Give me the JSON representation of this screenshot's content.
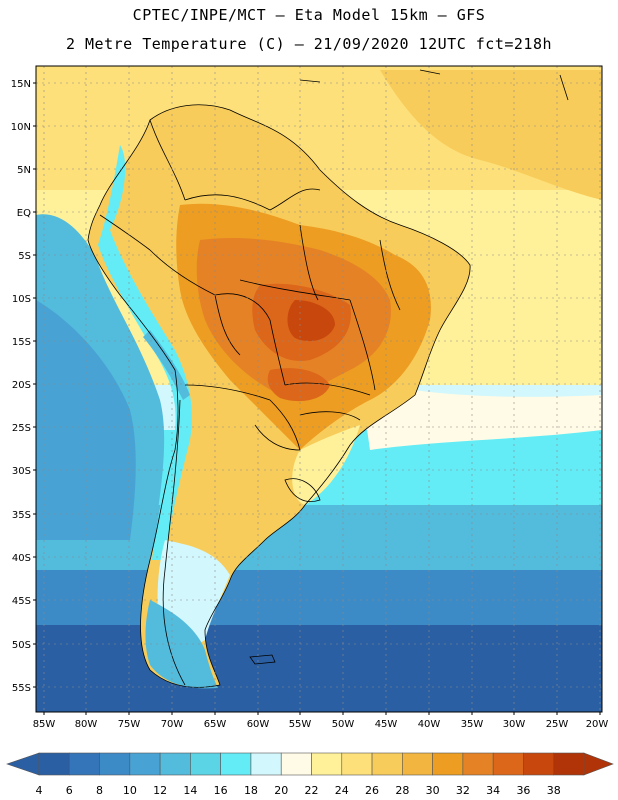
{
  "header": {
    "line1": "CPTEC/INPE/MCT –  Eta Model 15km – GFS",
    "line2": "2 Metre Temperature (C) – 21/09/2020 12UTC fct=218h"
  },
  "map": {
    "lat_labels": [
      "15N",
      "10N",
      "5N",
      "EQ",
      "5S",
      "10S",
      "15S",
      "20S",
      "25S",
      "30S",
      "35S",
      "40S",
      "45S",
      "50S",
      "55S"
    ],
    "lon_labels": [
      "85W",
      "80W",
      "75W",
      "70W",
      "65W",
      "60W",
      "55W",
      "50W",
      "45W",
      "40W",
      "35W",
      "30W",
      "25W",
      "20W"
    ]
  },
  "legend": {
    "labels": [
      "4",
      "6",
      "8",
      "10",
      "12",
      "14",
      "16",
      "18",
      "20",
      "22",
      "24",
      "26",
      "28",
      "30",
      "32",
      "34",
      "36",
      "38"
    ],
    "colors": [
      "#2b5fa3",
      "#3474b8",
      "#3c8bc7",
      "#48a3d4",
      "#53bbdc",
      "#5bd4e6",
      "#63ecf5",
      "#d2f7fc",
      "#fffbe6",
      "#fff199",
      "#fde07a",
      "#f8cc5a",
      "#f2b640",
      "#ec9d22",
      "#e68226",
      "#dc661a",
      "#c8470c",
      "#b03407"
    ],
    "left_arrow_color": "#2b5fa3",
    "right_arrow_color": "#b03407"
  }
}
